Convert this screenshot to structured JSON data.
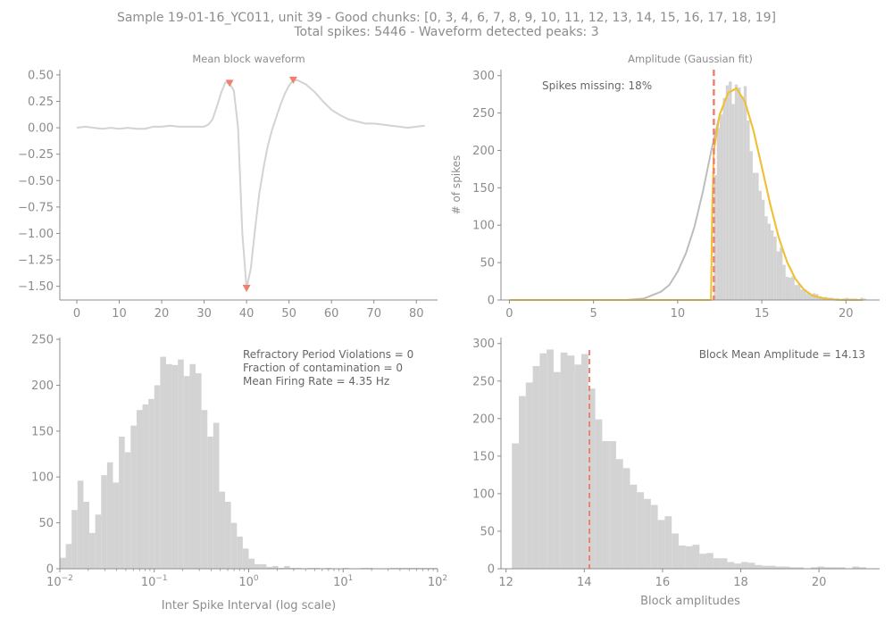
{
  "suptitle": {
    "line1": "Sample 19-01-16_YC011, unit 39 - Good chunks: [0, 3, 4, 6, 7, 8, 9, 10, 11, 12, 13, 14, 15, 16, 17, 18, 19]",
    "line2": "Total spikes: 5446 - Waveform detected peaks: 3"
  },
  "colors": {
    "axis": "#8c8c8c",
    "hist": "#d3d3d3",
    "waveform": "#d3d3d3",
    "peak": "#f08070",
    "fit": "#f2c12e",
    "gauss": "#bdbdbd",
    "vline": "#f08070"
  },
  "chart_data": [
    {
      "type": "line",
      "title": "Mean block waveform",
      "xlim": [
        -4,
        85
      ],
      "ylim": [
        -1.63,
        0.55
      ],
      "xticks": [
        0,
        10,
        20,
        30,
        40,
        50,
        60,
        70,
        80
      ],
      "xtick_labels": [
        "0",
        "10",
        "20",
        "30",
        "40",
        "50",
        "60",
        "70",
        "80"
      ],
      "yticks": [
        0.5,
        0.25,
        0.0,
        -0.25,
        -0.5,
        -0.75,
        -1.0,
        -1.25,
        -1.5
      ],
      "ytick_labels": [
        "0.50",
        "0.25",
        "0.00",
        "−0.25",
        "−0.50",
        "−0.75",
        "−1.00",
        "−1.25",
        "−1.50"
      ],
      "x": [
        0,
        2,
        4,
        6,
        8,
        10,
        12,
        14,
        16,
        18,
        20,
        22,
        24,
        26,
        28,
        30,
        31,
        32,
        33,
        34,
        35,
        36,
        37,
        38,
        39,
        40,
        41,
        42,
        43,
        44,
        45,
        46,
        47,
        48,
        49,
        50,
        51,
        52,
        54,
        56,
        58,
        60,
        62,
        64,
        66,
        68,
        70,
        72,
        74,
        76,
        78,
        80,
        82
      ],
      "y": [
        0.0,
        0.01,
        0.0,
        -0.01,
        0.0,
        -0.01,
        0.0,
        -0.01,
        -0.01,
        0.01,
        0.01,
        0.02,
        0.01,
        0.01,
        0.01,
        0.01,
        0.03,
        0.08,
        0.2,
        0.33,
        0.43,
        0.42,
        0.35,
        0.0,
        -1.0,
        -1.52,
        -1.33,
        -0.96,
        -0.62,
        -0.38,
        -0.17,
        -0.02,
        0.1,
        0.22,
        0.32,
        0.4,
        0.45,
        0.45,
        0.41,
        0.34,
        0.25,
        0.17,
        0.12,
        0.08,
        0.06,
        0.04,
        0.04,
        0.03,
        0.02,
        0.01,
        0.0,
        0.01,
        0.02
      ],
      "peaks": [
        {
          "x": 36,
          "y": 0.42
        },
        {
          "x": 40,
          "y": -1.52
        },
        {
          "x": 51,
          "y": 0.45
        }
      ]
    },
    {
      "type": "bar",
      "title": "Amplitude (Gaussian fit)",
      "ylabel": "# of spikes",
      "annotation": "Spikes missing: 18%",
      "xlim": [
        -0.5,
        22.0
      ],
      "ylim": [
        0,
        308
      ],
      "xticks": [
        0,
        5,
        10,
        15,
        20
      ],
      "xtick_labels": [
        "0",
        "5",
        "10",
        "15",
        "20"
      ],
      "yticks": [
        0,
        50,
        100,
        150,
        200,
        250,
        300
      ],
      "ytick_labels": [
        "0",
        "50",
        "100",
        "150",
        "200",
        "250",
        "300"
      ],
      "bins_start": 12.15,
      "bin_width": 0.1776,
      "values": [
        167,
        230,
        248,
        270,
        287,
        292,
        262,
        288,
        284,
        272,
        286,
        240,
        199,
        170,
        170,
        146,
        134,
        112,
        102,
        93,
        85,
        65,
        70,
        47,
        31,
        30,
        32,
        20,
        21,
        14,
        14,
        9,
        7,
        9,
        8,
        5,
        4,
        4,
        3,
        3,
        2,
        2,
        0,
        2,
        3,
        2,
        2,
        2,
        0,
        3,
        2
      ],
      "vline_x": 12.15,
      "gauss_x": [
        0,
        2,
        4,
        6,
        7,
        8,
        9,
        9.5,
        10,
        10.5,
        11,
        11.5,
        12,
        12.5,
        13,
        13.5,
        14,
        14.5,
        15,
        15.5,
        16,
        16.5,
        17,
        17.5,
        18,
        18.5,
        19,
        19.5,
        20,
        21
      ],
      "gauss_y": [
        0,
        0,
        0,
        0,
        0.2,
        2,
        11,
        20,
        38,
        63,
        98,
        145,
        200,
        248,
        277,
        283,
        265,
        227,
        178,
        128,
        84,
        51,
        28,
        14,
        6,
        3,
        1,
        0.3,
        0,
        0
      ],
      "fit_x": [
        0,
        4,
        8,
        11.98,
        12.05,
        12.15,
        12.5,
        13,
        13.5,
        14,
        14.5,
        15,
        15.5,
        16,
        16.5,
        17,
        17.5,
        18,
        18.5,
        19,
        19.5,
        20,
        21
      ],
      "fit_y": [
        0,
        0,
        0,
        0,
        120,
        200,
        248,
        277,
        283,
        265,
        227,
        178,
        128,
        84,
        51,
        28,
        14,
        6,
        3,
        1,
        0.3,
        0,
        0
      ]
    },
    {
      "type": "bar",
      "xlabel": "Inter Spike Interval (log scale)",
      "xscale": "log",
      "xlim": [
        0.01,
        100
      ],
      "ylim": [
        0,
        252
      ],
      "xticks": [
        0.01,
        0.1,
        1,
        10,
        100
      ],
      "xtick_labels": [
        [
          "10",
          "−2"
        ],
        [
          "10",
          "−1"
        ],
        [
          "10",
          "0"
        ],
        [
          "10",
          "1"
        ],
        [
          "10",
          "2"
        ]
      ],
      "yticks": [
        0,
        50,
        100,
        150,
        200,
        250
      ],
      "ytick_labels": [
        "0",
        "50",
        "100",
        "150",
        "200",
        "250"
      ],
      "annotations": [
        "Refractory Period Violations = 0",
        "Fraction of contamination = 0",
        "Mean Firing Rate = 4.35 Hz"
      ],
      "log_bins_start": -2.0,
      "log_bin_width": 0.0625,
      "values": [
        12,
        27,
        64,
        96,
        73,
        39,
        59,
        102,
        116,
        94,
        144,
        127,
        156,
        173,
        179,
        185,
        200,
        231,
        223,
        222,
        228,
        210,
        223,
        213,
        173,
        144,
        159,
        84,
        73,
        50,
        35,
        22,
        11,
        5,
        5,
        2,
        3,
        1,
        3,
        1,
        1,
        0,
        1,
        1,
        0,
        1,
        0,
        0,
        1,
        0,
        0,
        1,
        1,
        0,
        0,
        0,
        1,
        1,
        1,
        1,
        1,
        1,
        1,
        1
      ]
    },
    {
      "type": "bar",
      "xlabel": "Block amplitudes",
      "annotation": "Block Mean Amplitude = 14.13",
      "xlim": [
        11.87,
        21.55
      ],
      "ylim": [
        0,
        308
      ],
      "xticks": [
        12,
        14,
        16,
        18,
        20
      ],
      "xtick_labels": [
        "12",
        "14",
        "16",
        "18",
        "20"
      ],
      "yticks": [
        0,
        50,
        100,
        150,
        200,
        250,
        300
      ],
      "ytick_labels": [
        "0",
        "50",
        "100",
        "150",
        "200",
        "250",
        "300"
      ],
      "bins_start": 12.15,
      "bin_width": 0.1776,
      "values": [
        167,
        230,
        248,
        270,
        287,
        292,
        262,
        288,
        284,
        272,
        286,
        240,
        199,
        170,
        170,
        146,
        134,
        112,
        102,
        93,
        85,
        65,
        70,
        47,
        31,
        30,
        32,
        20,
        21,
        14,
        14,
        9,
        7,
        9,
        8,
        5,
        4,
        4,
        3,
        3,
        2,
        2,
        0,
        2,
        3,
        2,
        2,
        2,
        0,
        3,
        2
      ],
      "vline_x": 14.13
    }
  ]
}
